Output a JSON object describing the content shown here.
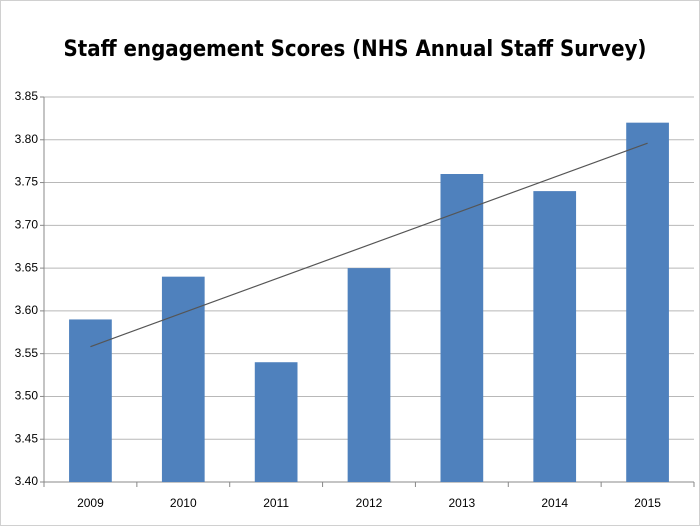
{
  "chart_data": {
    "type": "bar",
    "title": "Staff engagement Scores (NHS Annual Staff Survey)",
    "categories": [
      "2009",
      "2010",
      "2011",
      "2012",
      "2013",
      "2014",
      "2015"
    ],
    "values": [
      3.59,
      3.64,
      3.54,
      3.65,
      3.76,
      3.74,
      3.82
    ],
    "color": "#4f81bd",
    "ylim": [
      3.4,
      3.85
    ],
    "yticks": [
      {
        "value": 3.4,
        "label": "3.40"
      },
      3.45,
      {
        "value": 3.5,
        "label": "3.50"
      },
      3.55,
      {
        "value": 3.6,
        "label": "3.60"
      },
      3.65,
      {
        "value": 3.7,
        "label": "3.70"
      },
      3.75,
      {
        "value": 3.8,
        "label": "3.80"
      },
      3.85
    ],
    "grid": true,
    "trendline": "linear"
  }
}
